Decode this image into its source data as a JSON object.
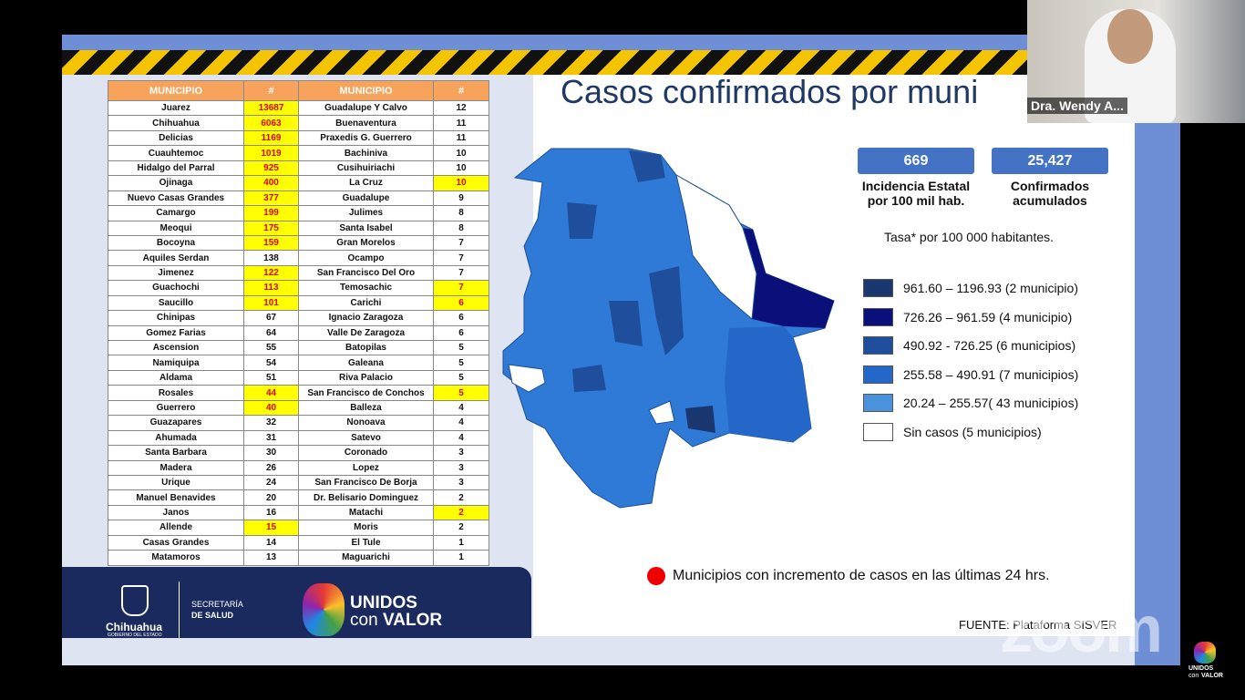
{
  "slide": {
    "title": "Casos confirmados por muni",
    "table": {
      "header": [
        "MUNICIPIO",
        "#",
        "MUNICIPIO",
        "#"
      ],
      "left": [
        {
          "name": "Juarez",
          "count": 13687,
          "new": true
        },
        {
          "name": "Chihuahua",
          "count": 6063,
          "new": true
        },
        {
          "name": "Delicias",
          "count": 1169,
          "new": true
        },
        {
          "name": "Cuauhtemoc",
          "count": 1019,
          "new": true
        },
        {
          "name": "Hidalgo del Parral",
          "count": 925,
          "new": true
        },
        {
          "name": "Ojinaga",
          "count": 400,
          "new": true
        },
        {
          "name": "Nuevo Casas Grandes",
          "count": 377,
          "new": true
        },
        {
          "name": "Camargo",
          "count": 199,
          "new": true
        },
        {
          "name": "Meoqui",
          "count": 175,
          "new": true
        },
        {
          "name": "Bocoyna",
          "count": 159,
          "new": true
        },
        {
          "name": "Aquiles Serdan",
          "count": 138,
          "new": false
        },
        {
          "name": "Jimenez",
          "count": 122,
          "new": true
        },
        {
          "name": "Guachochi",
          "count": 113,
          "new": true
        },
        {
          "name": "Saucillo",
          "count": 101,
          "new": true
        },
        {
          "name": "Chinipas",
          "count": 67,
          "new": false
        },
        {
          "name": "Gomez Farias",
          "count": 64,
          "new": false
        },
        {
          "name": "Ascension",
          "count": 55,
          "new": false
        },
        {
          "name": "Namiquipa",
          "count": 54,
          "new": false
        },
        {
          "name": "Aldama",
          "count": 51,
          "new": false
        },
        {
          "name": "Rosales",
          "count": 44,
          "new": true
        },
        {
          "name": "Guerrero",
          "count": 40,
          "new": true
        },
        {
          "name": "Guazapares",
          "count": 32,
          "new": false
        },
        {
          "name": "Ahumada",
          "count": 31,
          "new": false
        },
        {
          "name": "Santa Barbara",
          "count": 30,
          "new": false
        },
        {
          "name": "Madera",
          "count": 26,
          "new": false
        },
        {
          "name": "Urique",
          "count": 24,
          "new": false
        },
        {
          "name": "Manuel Benavides",
          "count": 20,
          "new": false
        },
        {
          "name": "Janos",
          "count": 16,
          "new": false
        },
        {
          "name": "Allende",
          "count": 15,
          "new": true
        },
        {
          "name": "Casas Grandes",
          "count": 14,
          "new": false
        },
        {
          "name": "Matamoros",
          "count": 13,
          "new": false
        }
      ],
      "right": [
        {
          "name": "Guadalupe Y Calvo",
          "count": 12,
          "new": false
        },
        {
          "name": "Buenaventura",
          "count": 11,
          "new": false
        },
        {
          "name": "Praxedis G. Guerrero",
          "count": 11,
          "new": false
        },
        {
          "name": "Bachiniva",
          "count": 10,
          "new": false
        },
        {
          "name": "Cusihuiriachi",
          "count": 10,
          "new": false
        },
        {
          "name": "La Cruz",
          "count": 10,
          "new": true
        },
        {
          "name": "Guadalupe",
          "count": 9,
          "new": false
        },
        {
          "name": "Julimes",
          "count": 8,
          "new": false
        },
        {
          "name": "Santa Isabel",
          "count": 8,
          "new": false
        },
        {
          "name": "Gran Morelos",
          "count": 7,
          "new": false
        },
        {
          "name": "Ocampo",
          "count": 7,
          "new": false
        },
        {
          "name": "San Francisco Del Oro",
          "count": 7,
          "new": false
        },
        {
          "name": "Temosachic",
          "count": 7,
          "new": true
        },
        {
          "name": "Carichi",
          "count": 6,
          "new": true
        },
        {
          "name": "Ignacio Zaragoza",
          "count": 6,
          "new": false
        },
        {
          "name": "Valle De Zaragoza",
          "count": 6,
          "new": false
        },
        {
          "name": "Batopilas",
          "count": 5,
          "new": false
        },
        {
          "name": "Galeana",
          "count": 5,
          "new": false
        },
        {
          "name": "Riva Palacio",
          "count": 5,
          "new": false
        },
        {
          "name": "San Francisco de Conchos",
          "count": 5,
          "new": true
        },
        {
          "name": "Balleza",
          "count": 4,
          "new": false
        },
        {
          "name": "Nonoava",
          "count": 4,
          "new": false
        },
        {
          "name": "Satevo",
          "count": 4,
          "new": false
        },
        {
          "name": "Coronado",
          "count": 3,
          "new": false
        },
        {
          "name": "Lopez",
          "count": 3,
          "new": false
        },
        {
          "name": "San Francisco De Borja",
          "count": 3,
          "new": false
        },
        {
          "name": "Dr. Belisario Dominguez",
          "count": 2,
          "new": false
        },
        {
          "name": "Matachi",
          "count": 2,
          "new": true
        },
        {
          "name": "Moris",
          "count": 2,
          "new": false
        },
        {
          "name": "El Tule",
          "count": 1,
          "new": false
        },
        {
          "name": "Maguarichi",
          "count": 1,
          "new": false
        }
      ]
    },
    "stats": [
      {
        "value": "669",
        "label": "Incidencia Estatal por 100 mil hab."
      },
      {
        "value": "25,427",
        "label": "Confirmados acumulados"
      }
    ],
    "rate_note": "Tasa* por 100 000 habitantes.",
    "legend": [
      {
        "label": "961.60 – 1196.93 (2 municipio)",
        "color": "#1b3770"
      },
      {
        "label": "726.26 – 961.59 (4 municipio)",
        "color": "#0a0f7a"
      },
      {
        "label": "490.92  - 726.25 (6 municipios)",
        "color": "#1f4f9c"
      },
      {
        "label": "255.58 – 490.91 (7 municipios)",
        "color": "#2467c8"
      },
      {
        "label": " 20.24 – 255.57( 43 municipios)",
        "color": "#4a92dc"
      },
      {
        "label": "Sin casos (5 municipios)",
        "color": "#ffffff"
      }
    ],
    "increase_note": "Municipios con incremento de casos en las últimas 24 hrs.",
    "source": "FUENTE: Plataforma SISVER",
    "footer": {
      "state": "Chihuahua",
      "state_sub": "GOBIERNO DEL ESTADO",
      "dept_1": "SECRETARÍA",
      "dept_2": "DE SALUD",
      "brand_1": "UNIDOS",
      "brand_2": "con",
      "brand_3": "VALOR"
    }
  },
  "zoom": {
    "participant": "Dra. Wendy A...",
    "watermark": "zoom",
    "corner_1": "UNIDOS",
    "corner_2": "con",
    "corner_3": "VALOR"
  }
}
